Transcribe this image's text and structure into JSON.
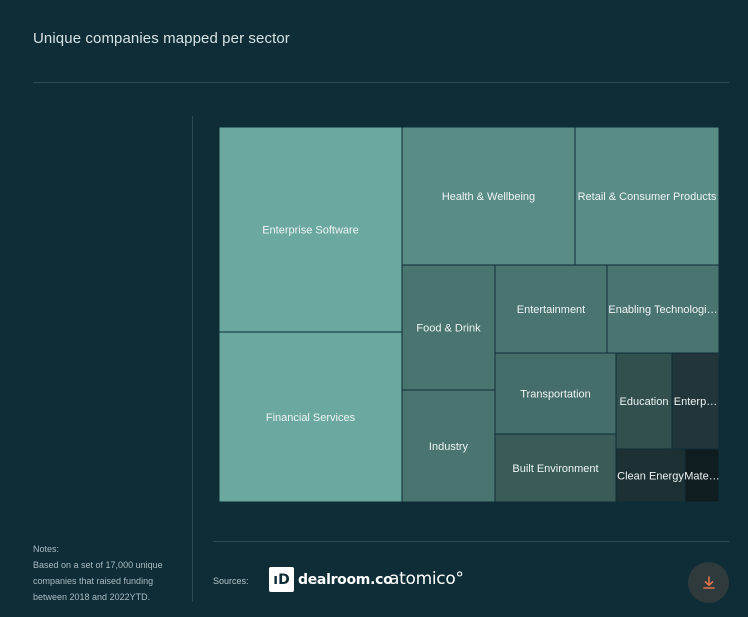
{
  "header": {
    "title": "Unique companies mapped per sector"
  },
  "chart_data": {
    "type": "treemap",
    "title": "Unique companies mapped per sector",
    "items": [
      {
        "label": "Enterprise Software",
        "color": "#6aa8a0"
      },
      {
        "label": "Financial Services",
        "color": "#6aa8a0"
      },
      {
        "label": "Health & Wellbeing",
        "color": "#5a8c86"
      },
      {
        "label": "Retail & Consumer Products",
        "color": "#5a8c86"
      },
      {
        "label": "Food & Drink",
        "color": "#4a7470"
      },
      {
        "label": "Industry",
        "color": "#4a7470"
      },
      {
        "label": "Entertainment",
        "color": "#4a7470"
      },
      {
        "label": "Enabling Technologi…",
        "color": "#4a7470"
      },
      {
        "label": "Transportation",
        "color": "#456e6a"
      },
      {
        "label": "Built Environment",
        "color": "#3a5c59"
      },
      {
        "label": "Education",
        "color": "#31504e"
      },
      {
        "label": "Enterp…",
        "color": "#21353a"
      },
      {
        "label": "Clean Energy",
        "color": "#1d3034"
      },
      {
        "label": "Mate…",
        "color": "#0f1c20"
      }
    ]
  },
  "notes": {
    "heading": "Notes:",
    "text": "Based on a set of 17,000 unique companies that raised funding between 2018 and 2022YTD."
  },
  "footer": {
    "sources_label": "Sources:",
    "dealroom_badge": "ıD",
    "dealroom_text": "dealroom.co",
    "atomico_text": "atomico°",
    "download_icon": "download-icon"
  },
  "colors": {
    "background": "#0f2d36",
    "download_arrow": "#e0734a"
  }
}
